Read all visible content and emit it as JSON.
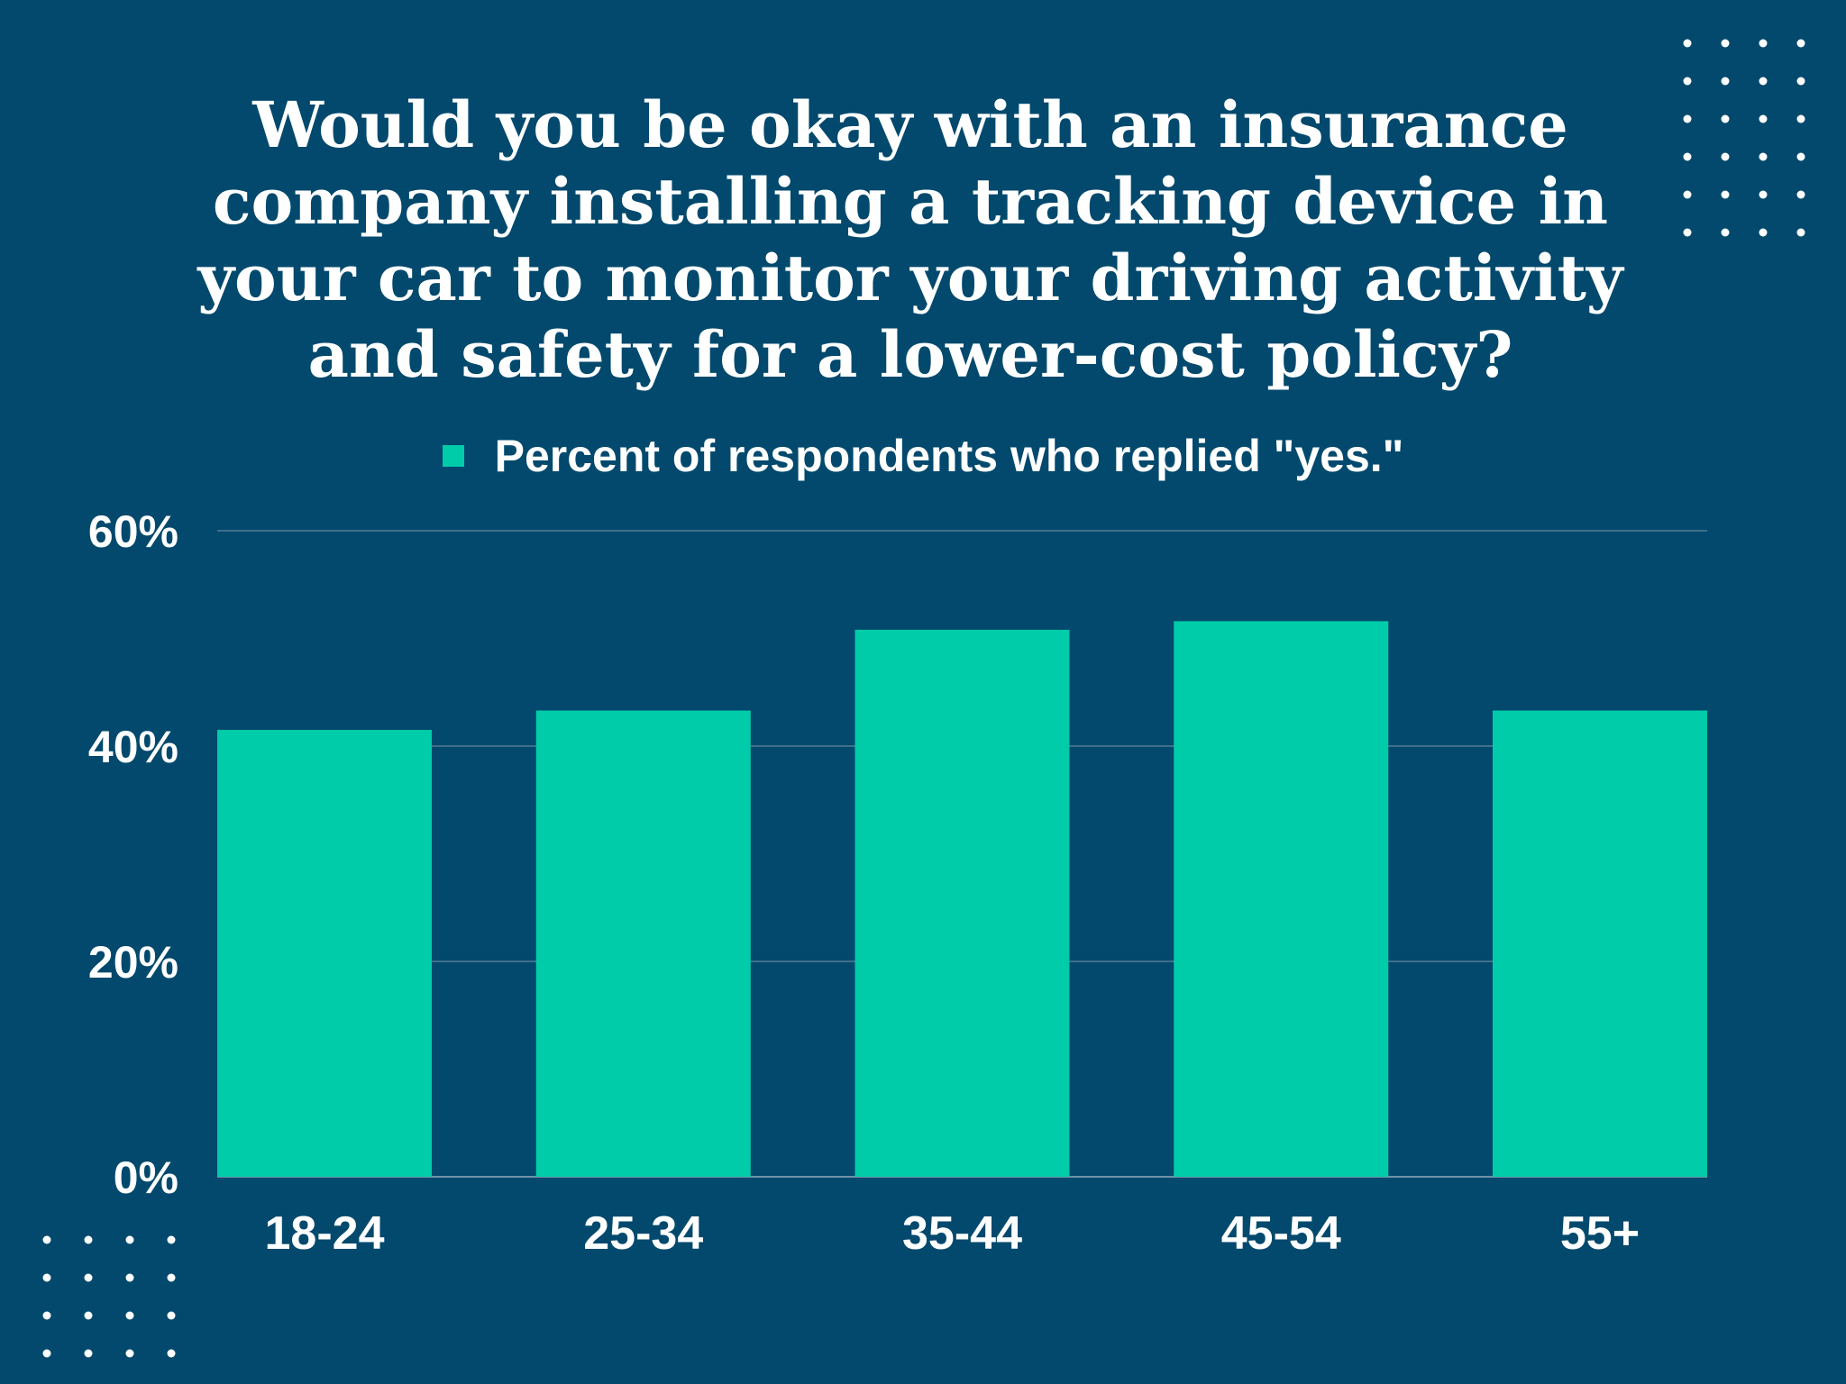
{
  "colors": {
    "background": "#02496d",
    "bar": "#00cca9",
    "text": "#ffffff",
    "grid": "#3f6f8c"
  },
  "chart_data": {
    "type": "bar",
    "title": "Would you be okay with an insurance company installing a tracking device in your car to monitor your driving activity and safety for a lower-cost policy?",
    "legend": "Percent of respondents who replied \"yes.\"",
    "legend_position": "top-center",
    "categories": [
      "18-24",
      "25-34",
      "35-44",
      "45-54",
      "55+"
    ],
    "series": [
      {
        "name": "Percent of respondents who replied \"yes.\"",
        "values": [
          41.5,
          43.3,
          50.8,
          51.6,
          43.3
        ]
      }
    ],
    "ylim": [
      0,
      60
    ],
    "yticks": [
      0,
      20,
      40,
      60
    ],
    "ytick_labels": [
      "0%",
      "20%",
      "40%",
      "60%"
    ],
    "grid": true
  }
}
